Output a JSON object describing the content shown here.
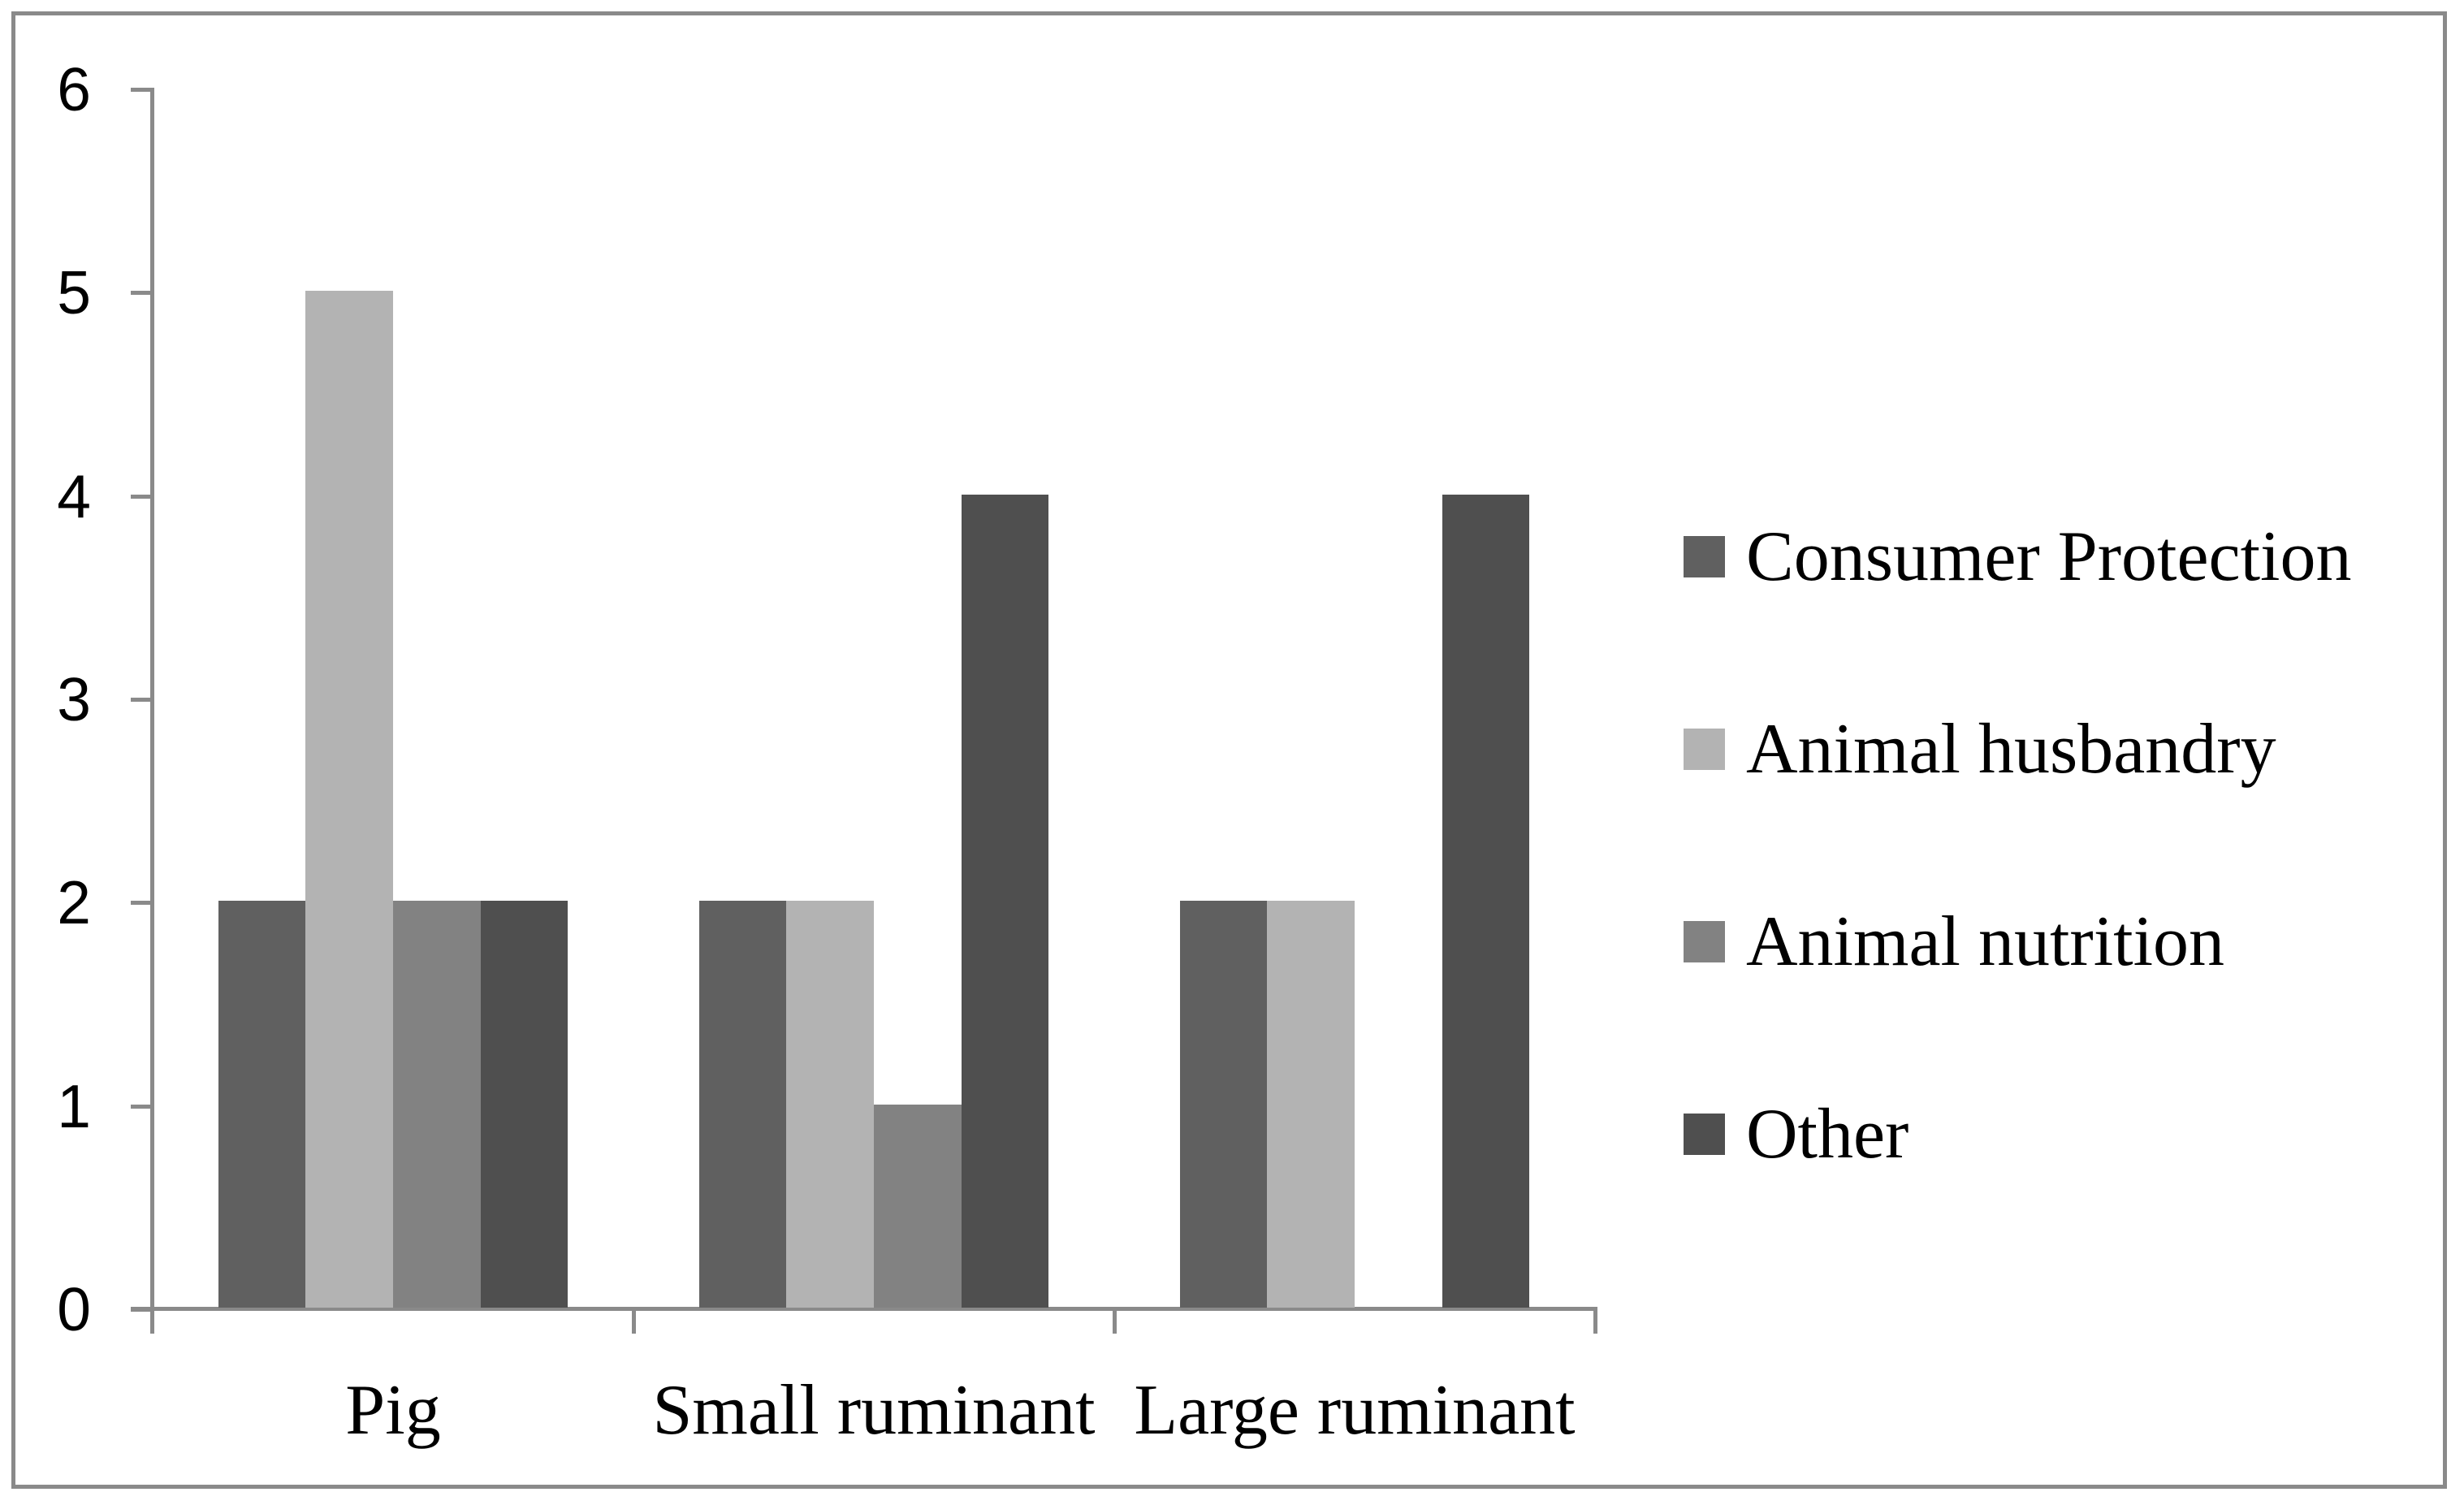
{
  "chart_data": {
    "type": "bar",
    "title": "",
    "categories": [
      "Pig",
      "Small ruminant",
      "Large ruminant"
    ],
    "series": [
      {
        "name": "Consumer Protection",
        "color": "#606060",
        "values": [
          2,
          2,
          2
        ]
      },
      {
        "name": "Animal husbandry",
        "color": "#B3B3B3",
        "values": [
          5,
          2,
          2
        ]
      },
      {
        "name": "Animal nutrition",
        "color": "#828282",
        "values": [
          2,
          1,
          0
        ]
      },
      {
        "name": "Other",
        "color": "#4F4F4F",
        "values": [
          2,
          4,
          4
        ]
      }
    ],
    "xlabel": "",
    "ylabel": "",
    "ylim": [
      0,
      6
    ],
    "yticks": [
      0,
      1,
      2,
      3,
      4,
      5,
      6
    ],
    "grid": false,
    "legend_position": "right",
    "axis_color": "#8A8A8A",
    "frame_color": "#8A8A8A",
    "background_color": "#FFFFFF",
    "bar_gap_ratio": 1.5
  }
}
